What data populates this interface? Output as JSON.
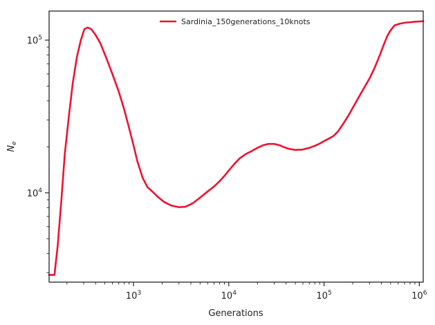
{
  "chart_data": {
    "type": "line",
    "title": "",
    "xlabel": "Generations",
    "ylabel": "N",
    "ylabel_subscript": "e",
    "xscale": "log",
    "yscale": "log",
    "xlim": [
      130,
      1100000
    ],
    "ylim": [
      2600,
      155000
    ],
    "grid": false,
    "legend_position": "top-center",
    "x_ticks": [
      {
        "value": 1000,
        "base": "10",
        "exp": "3"
      },
      {
        "value": 10000,
        "base": "10",
        "exp": "4"
      },
      {
        "value": 100000,
        "base": "10",
        "exp": "5"
      },
      {
        "value": 1000000,
        "base": "10",
        "exp": "6"
      }
    ],
    "y_ticks": [
      {
        "value": 10000,
        "base": "10",
        "exp": "4"
      },
      {
        "value": 100000,
        "base": "10",
        "exp": "5"
      }
    ],
    "series": [
      {
        "name": "Sardinia_150generations_10knots",
        "color": "#f0102f",
        "x": [
          130,
          148,
          160,
          175,
          190,
          210,
          230,
          255,
          280,
          305,
          330,
          360,
          400,
          450,
          520,
          600,
          700,
          800,
          900,
          1000,
          1100,
          1250,
          1400,
          1600,
          1800,
          2100,
          2500,
          3000,
          3500,
          4200,
          5000,
          6000,
          7000,
          8000,
          9000,
          10000,
          11500,
          13000,
          15000,
          17500,
          20000,
          23000,
          26000,
          30000,
          34000,
          38000,
          43000,
          50000,
          60000,
          70000,
          80000,
          90000,
          100000,
          110000,
          125000,
          140000,
          160000,
          180000,
          200000,
          230000,
          260000,
          300000,
          340000,
          380000,
          420000,
          460000,
          500000,
          550000,
          620000,
          700000,
          800000,
          900000,
          1000000,
          1100000
        ],
        "y": [
          2900,
          2900,
          4500,
          9000,
          18000,
          32000,
          52000,
          78000,
          100000,
          118000,
          121000,
          118000,
          108000,
          95000,
          76000,
          60000,
          46000,
          35000,
          26500,
          20500,
          16000,
          12500,
          10900,
          10100,
          9400,
          8700,
          8250,
          8050,
          8100,
          8550,
          9300,
          10200,
          11000,
          11900,
          12900,
          14000,
          15500,
          16800,
          17900,
          18800,
          19700,
          20500,
          20900,
          20900,
          20500,
          19900,
          19400,
          19100,
          19200,
          19700,
          20300,
          21000,
          21800,
          22500,
          23500,
          25200,
          28500,
          32000,
          36000,
          42000,
          48000,
          56000,
          66000,
          78000,
          92000,
          106000,
          116000,
          125000,
          128000,
          130000,
          131000,
          132000,
          132500,
          133000
        ]
      }
    ]
  }
}
